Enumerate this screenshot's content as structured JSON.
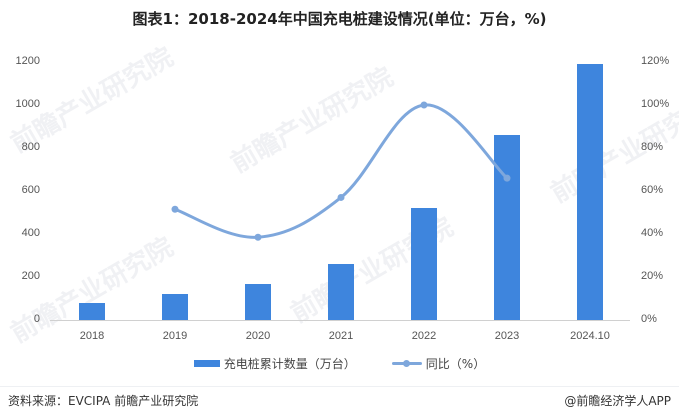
{
  "title": "图表1：2018-2024年中国充电桩建设情况(单位：万台，%)",
  "colors": {
    "bar": "#3E85DD",
    "line": "#7EA7DC",
    "axis": "#d0d0d0"
  },
  "chart_data": {
    "type": "bar+line",
    "title": "图表1：2018-2024年中国充电桩建设情况(单位：万台，%)",
    "categories": [
      "2018",
      "2019",
      "2020",
      "2021",
      "2022",
      "2023",
      "2024.10"
    ],
    "series": [
      {
        "name": "充电桩累计数量（万台）",
        "type": "bar",
        "axis": "left",
        "values": [
          80,
          121,
          167,
          260,
          520,
          860,
          1190
        ]
      },
      {
        "name": "同比（%）",
        "type": "line",
        "axis": "right",
        "values": [
          null,
          51.5,
          38.5,
          57,
          100,
          66,
          null
        ]
      }
    ],
    "y_left": {
      "min": 0,
      "max": 1200,
      "ticks": [
        "0",
        "200",
        "400",
        "600",
        "800",
        "1000",
        "1200"
      ]
    },
    "y_right": {
      "min": 0,
      "max": 120,
      "ticks": [
        "0%",
        "20%",
        "40%",
        "60%",
        "80%",
        "100%",
        "120%"
      ]
    },
    "grid": false,
    "legend_position": "bottom"
  },
  "legend": {
    "bar_label": "充电桩累计数量（万台）",
    "line_label": "同比（%）"
  },
  "footer": {
    "source": "资料来源：EVCIPA 前瞻产业研究院",
    "credit": "@前瞻经济学人APP"
  },
  "watermark": "前瞻产业研究院"
}
